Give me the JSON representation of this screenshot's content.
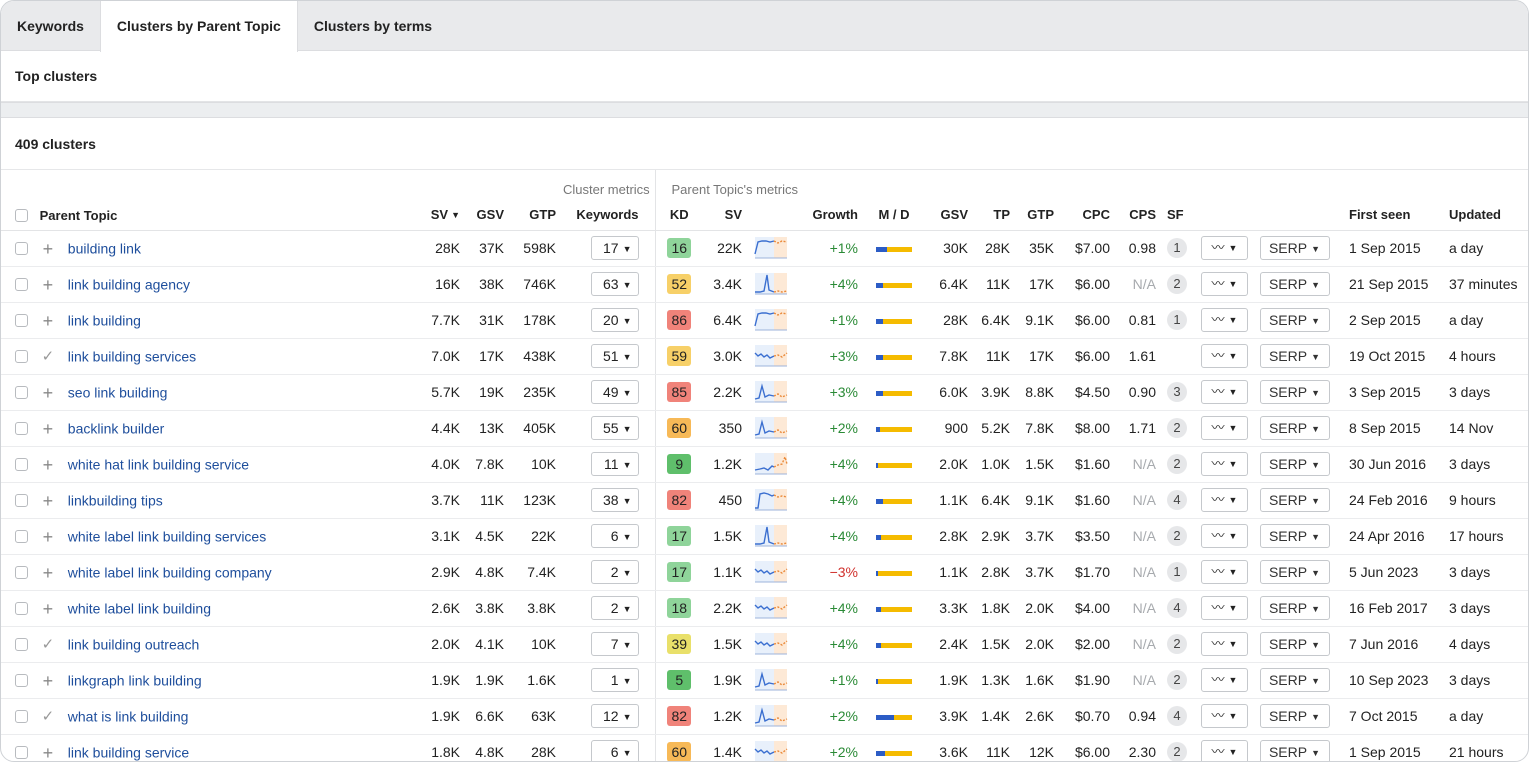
{
  "tabs": [
    {
      "label": "Keywords",
      "active": false
    },
    {
      "label": "Clusters by Parent Topic",
      "active": true
    },
    {
      "label": "Clusters by terms",
      "active": false
    }
  ],
  "section_title": "Top clusters",
  "cluster_count": "409 clusters",
  "group_headers": {
    "cluster": "Cluster metrics",
    "parent": "Parent Topic's metrics"
  },
  "columns": {
    "parent_topic": "Parent Topic",
    "sv": "SV",
    "gsv": "GSV",
    "gtp": "GTP",
    "keywords": "Keywords",
    "kd": "KD",
    "pt_sv": "SV",
    "growth": "Growth",
    "md": "M / D",
    "pt_gsv": "GSV",
    "tp": "TP",
    "pt_gtp": "GTP",
    "cpc": "CPC",
    "cps": "CPS",
    "sf": "SF",
    "first_seen": "First seen",
    "updated": "Updated"
  },
  "serp_label": "SERP",
  "rows": [
    {
      "topic": "building link",
      "expander": "+",
      "sv": "28K",
      "gsv": "37K",
      "gtp": "598K",
      "kw": "17",
      "kd": "16",
      "kd_color": "#8fd49a",
      "psv": "22K",
      "spark": "flat",
      "growth": "+1%",
      "neg": false,
      "md": 0.3,
      "pgsv": "30K",
      "tp": "28K",
      "pgtp": "35K",
      "cpc": "$7.00",
      "cps": "0.98",
      "sf": "1",
      "first": "1 Sep 2015",
      "upd": "a day"
    },
    {
      "topic": "link building agency",
      "expander": "+",
      "sv": "16K",
      "gsv": "38K",
      "gtp": "746K",
      "kw": "63",
      "kd": "52",
      "kd_color": "#f7d068",
      "psv": "3.4K",
      "spark": "spike",
      "growth": "+4%",
      "neg": false,
      "md": 0.2,
      "pgsv": "6.4K",
      "tp": "11K",
      "pgtp": "17K",
      "cpc": "$6.00",
      "cps": "N/A",
      "sf": "2",
      "first": "21 Sep 2015",
      "upd": "37 minutes"
    },
    {
      "topic": "link building",
      "expander": "+",
      "sv": "7.7K",
      "gsv": "31K",
      "gtp": "178K",
      "kw": "20",
      "kd": "86",
      "kd_color": "#f0837a",
      "psv": "6.4K",
      "spark": "flat",
      "growth": "+1%",
      "neg": false,
      "md": 0.2,
      "pgsv": "28K",
      "tp": "6.4K",
      "pgtp": "9.1K",
      "cpc": "$6.00",
      "cps": "0.81",
      "sf": "1",
      "first": "2 Sep 2015",
      "upd": "a day"
    },
    {
      "topic": "link building services",
      "expander": "✓",
      "sv": "7.0K",
      "gsv": "17K",
      "gtp": "438K",
      "kw": "51",
      "kd": "59",
      "kd_color": "#f7d068",
      "psv": "3.0K",
      "spark": "wavy",
      "growth": "+3%",
      "neg": false,
      "md": 0.2,
      "pgsv": "7.8K",
      "tp": "11K",
      "pgtp": "17K",
      "cpc": "$6.00",
      "cps": "1.61",
      "sf": "",
      "first": "19 Oct 2015",
      "upd": "4 hours"
    },
    {
      "topic": "seo link building",
      "expander": "+",
      "sv": "5.7K",
      "gsv": "19K",
      "gtp": "235K",
      "kw": "49",
      "kd": "85",
      "kd_color": "#f0837a",
      "psv": "2.2K",
      "spark": "bump",
      "growth": "+3%",
      "neg": false,
      "md": 0.2,
      "pgsv": "6.0K",
      "tp": "3.9K",
      "pgtp": "8.8K",
      "cpc": "$4.50",
      "cps": "0.90",
      "sf": "3",
      "first": "3 Sep 2015",
      "upd": "3 days"
    },
    {
      "topic": "backlink builder",
      "expander": "+",
      "sv": "4.4K",
      "gsv": "13K",
      "gtp": "405K",
      "kw": "55",
      "kd": "60",
      "kd_color": "#f7b957",
      "psv": "350",
      "spark": "bump",
      "growth": "+2%",
      "neg": false,
      "md": 0.1,
      "pgsv": "900",
      "tp": "5.2K",
      "pgtp": "7.8K",
      "cpc": "$8.00",
      "cps": "1.71",
      "sf": "2",
      "first": "8 Sep 2015",
      "upd": "14 Nov"
    },
    {
      "topic": "white hat link building service",
      "expander": "+",
      "sv": "4.0K",
      "gsv": "7.8K",
      "gtp": "10K",
      "kw": "11",
      "kd": "9",
      "kd_color": "#5fbf6b",
      "psv": "1.2K",
      "spark": "rise",
      "growth": "+4%",
      "neg": false,
      "md": 0.05,
      "pgsv": "2.0K",
      "tp": "1.0K",
      "pgtp": "1.5K",
      "cpc": "$1.60",
      "cps": "N/A",
      "sf": "2",
      "first": "30 Jun 2016",
      "upd": "3 days"
    },
    {
      "topic": "linkbuilding tips",
      "expander": "+",
      "sv": "3.7K",
      "gsv": "11K",
      "gtp": "123K",
      "kw": "38",
      "kd": "82",
      "kd_color": "#f0837a",
      "psv": "450",
      "spark": "step",
      "growth": "+4%",
      "neg": false,
      "md": 0.2,
      "pgsv": "1.1K",
      "tp": "6.4K",
      "pgtp": "9.1K",
      "cpc": "$1.60",
      "cps": "N/A",
      "sf": "4",
      "first": "24 Feb 2016",
      "upd": "9 hours"
    },
    {
      "topic": "white label link building services",
      "expander": "+",
      "sv": "3.1K",
      "gsv": "4.5K",
      "gtp": "22K",
      "kw": "6",
      "kd": "17",
      "kd_color": "#8fd49a",
      "psv": "1.5K",
      "spark": "spike",
      "growth": "+4%",
      "neg": false,
      "md": 0.15,
      "pgsv": "2.8K",
      "tp": "2.9K",
      "pgtp": "3.7K",
      "cpc": "$3.50",
      "cps": "N/A",
      "sf": "2",
      "first": "24 Apr 2016",
      "upd": "17 hours"
    },
    {
      "topic": "white label link building company",
      "expander": "+",
      "sv": "2.9K",
      "gsv": "4.8K",
      "gtp": "7.4K",
      "kw": "2",
      "kd": "17",
      "kd_color": "#8fd49a",
      "psv": "1.1K",
      "spark": "wavy",
      "growth": "−3%",
      "neg": true,
      "md": 0.05,
      "pgsv": "1.1K",
      "tp": "2.8K",
      "pgtp": "3.7K",
      "cpc": "$1.70",
      "cps": "N/A",
      "sf": "1",
      "first": "5 Jun 2023",
      "upd": "3 days"
    },
    {
      "topic": "white label link building",
      "expander": "+",
      "sv": "2.6K",
      "gsv": "3.8K",
      "gtp": "3.8K",
      "kw": "2",
      "kd": "18",
      "kd_color": "#8fd49a",
      "psv": "2.2K",
      "spark": "wavy",
      "growth": "+4%",
      "neg": false,
      "md": 0.15,
      "pgsv": "3.3K",
      "tp": "1.8K",
      "pgtp": "2.0K",
      "cpc": "$4.00",
      "cps": "N/A",
      "sf": "4",
      "first": "16 Feb 2017",
      "upd": "3 days"
    },
    {
      "topic": "link building outreach",
      "expander": "✓",
      "sv": "2.0K",
      "gsv": "4.1K",
      "gtp": "10K",
      "kw": "7",
      "kd": "39",
      "kd_color": "#e9e06a",
      "psv": "1.5K",
      "spark": "wavy",
      "growth": "+4%",
      "neg": false,
      "md": 0.15,
      "pgsv": "2.4K",
      "tp": "1.5K",
      "pgtp": "2.0K",
      "cpc": "$2.00",
      "cps": "N/A",
      "sf": "2",
      "first": "7 Jun 2016",
      "upd": "4 days"
    },
    {
      "topic": "linkgraph link building",
      "expander": "+",
      "sv": "1.9K",
      "gsv": "1.9K",
      "gtp": "1.6K",
      "kw": "1",
      "kd": "5",
      "kd_color": "#5fbf6b",
      "psv": "1.9K",
      "spark": "bump",
      "growth": "+1%",
      "neg": false,
      "md": 0.05,
      "pgsv": "1.9K",
      "tp": "1.3K",
      "pgtp": "1.6K",
      "cpc": "$1.90",
      "cps": "N/A",
      "sf": "2",
      "first": "10 Sep 2023",
      "upd": "3 days"
    },
    {
      "topic": "what is link building",
      "expander": "✓",
      "sv": "1.9K",
      "gsv": "6.6K",
      "gtp": "63K",
      "kw": "12",
      "kd": "82",
      "kd_color": "#f0837a",
      "psv": "1.2K",
      "spark": "bump",
      "growth": "+2%",
      "neg": false,
      "md": 0.5,
      "pgsv": "3.9K",
      "tp": "1.4K",
      "pgtp": "2.6K",
      "cpc": "$0.70",
      "cps": "0.94",
      "sf": "4",
      "first": "7 Oct 2015",
      "upd": "a day"
    },
    {
      "topic": "link building service",
      "expander": "+",
      "sv": "1.8K",
      "gsv": "4.8K",
      "gtp": "28K",
      "kw": "6",
      "kd": "60",
      "kd_color": "#f7b957",
      "psv": "1.4K",
      "spark": "wavy",
      "growth": "+2%",
      "neg": false,
      "md": 0.25,
      "pgsv": "3.6K",
      "tp": "11K",
      "pgtp": "12K",
      "cpc": "$6.00",
      "cps": "2.30",
      "sf": "2",
      "first": "1 Sep 2015",
      "upd": "21 hours"
    }
  ]
}
